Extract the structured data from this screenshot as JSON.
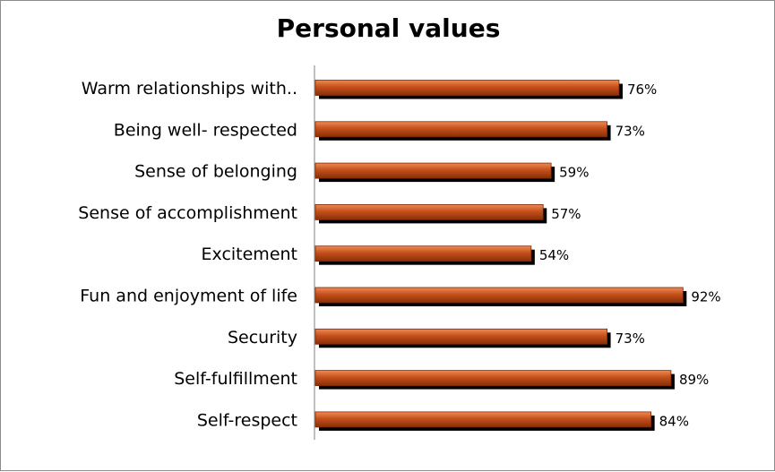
{
  "chart_data": {
    "type": "bar",
    "orientation": "horizontal",
    "title": "Personal values",
    "categories": [
      "Warm relationships with..",
      "Being well- respected",
      "Sense of belonging",
      "Sense of accomplishment",
      "Excitement",
      "Fun and enjoyment of life",
      "Security",
      "Self-fulfillment",
      "Self-respect"
    ],
    "values": [
      76,
      73,
      59,
      57,
      54,
      92,
      73,
      89,
      84
    ],
    "value_labels": [
      "76%",
      "73%",
      "59%",
      "57%",
      "54%",
      "92%",
      "73%",
      "89%",
      "84%"
    ],
    "value_unit": "%",
    "xlim": [
      0,
      100
    ],
    "grid": false,
    "legend": "none",
    "bar_color": "#c4501a",
    "bar_highlight_color": "#f08a55",
    "shadow_color": "#000000"
  }
}
